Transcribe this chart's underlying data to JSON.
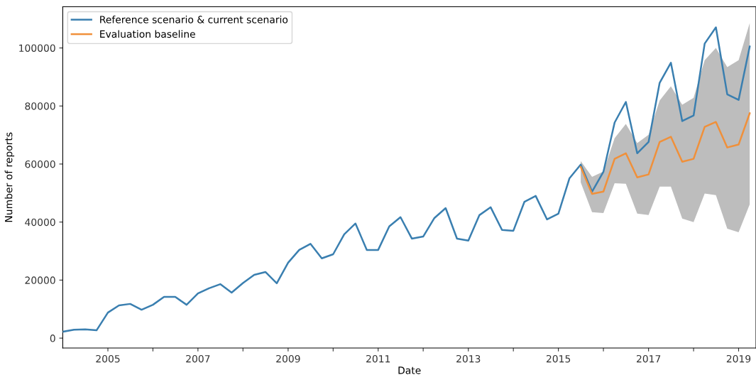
{
  "chart_data": {
    "type": "line",
    "xlabel": "Date",
    "ylabel": "Number of reports",
    "legend": "top left",
    "grid": false,
    "marker": "none",
    "line_style": "solid",
    "xlim": [
      "2004-01-01",
      "2019-05-22"
    ],
    "xticks": [
      {
        "value": "2005",
        "label": "2005"
      },
      {
        "value": "2006",
        "label": null
      },
      {
        "value": "2007",
        "label": "2007"
      },
      {
        "value": "2008",
        "label": null
      },
      {
        "value": "2009",
        "label": "2009"
      },
      {
        "value": "2010",
        "label": null
      },
      {
        "value": "2011",
        "label": "2011"
      },
      {
        "value": "2012",
        "label": null
      },
      {
        "value": "2013",
        "label": "2013"
      },
      {
        "value": "2014",
        "label": null
      },
      {
        "value": "2015",
        "label": "2015"
      },
      {
        "value": "2016",
        "label": null
      },
      {
        "value": "2017",
        "label": "2017"
      },
      {
        "value": "2018",
        "label": null
      },
      {
        "value": "2019",
        "label": "2019"
      }
    ],
    "ylim": [
      -3400,
      114200
    ],
    "yticks": [
      0,
      20000,
      40000,
      60000,
      80000,
      100000
    ],
    "series": [
      {
        "name": "Reference scenario & current scenario",
        "color": "#3a7fb0",
        "x": [
          "2004-01",
          "2004-04",
          "2004-07",
          "2004-10",
          "2005-01",
          "2005-04",
          "2005-07",
          "2005-10",
          "2006-01",
          "2006-04",
          "2006-07",
          "2006-10",
          "2007-01",
          "2007-04",
          "2007-07",
          "2007-10",
          "2008-01",
          "2008-04",
          "2008-07",
          "2008-10",
          "2009-01",
          "2009-04",
          "2009-07",
          "2009-10",
          "2010-01",
          "2010-04",
          "2010-07",
          "2010-10",
          "2011-01",
          "2011-04",
          "2011-07",
          "2011-10",
          "2012-01",
          "2012-04",
          "2012-07",
          "2012-10",
          "2013-01",
          "2013-04",
          "2013-07",
          "2013-10",
          "2014-01",
          "2014-04",
          "2014-07",
          "2014-10",
          "2015-01",
          "2015-04",
          "2015-07",
          "2015-10",
          "2016-01",
          "2016-04",
          "2016-07",
          "2016-10",
          "2017-01",
          "2017-04",
          "2017-07",
          "2017-10",
          "2018-01",
          "2018-04",
          "2018-07",
          "2018-10",
          "2019-01",
          "2019-04"
        ],
        "values": [
          2200,
          2900,
          3000,
          2700,
          8800,
          11300,
          11800,
          9800,
          11500,
          14200,
          14200,
          11500,
          15400,
          17200,
          18600,
          15700,
          19000,
          21800,
          22800,
          18900,
          26000,
          30400,
          32500,
          27500,
          28900,
          35800,
          39500,
          30400,
          30400,
          38500,
          41700,
          34300,
          35000,
          41400,
          44800,
          34300,
          33600,
          42400,
          45100,
          37300,
          37000,
          47000,
          49000,
          40900,
          42900,
          55100,
          59800,
          50500,
          57300,
          74300,
          81400,
          63700,
          67600,
          88000,
          94900,
          74800,
          76700,
          101500,
          107100,
          84000,
          82100,
          100500
        ]
      },
      {
        "name": "Evaluation baseline",
        "color": "#f0903a",
        "x": [
          "2015-07",
          "2015-10",
          "2016-01",
          "2016-04",
          "2016-07",
          "2016-10",
          "2017-01",
          "2017-04",
          "2017-07",
          "2017-10",
          "2018-01",
          "2018-04",
          "2018-07",
          "2018-10",
          "2019-01",
          "2019-04"
        ],
        "values": [
          59000,
          49700,
          50500,
          61800,
          63700,
          55400,
          56400,
          67600,
          69400,
          60800,
          61800,
          72800,
          74500,
          65700,
          66700,
          77500
        ],
        "upper": [
          61000,
          55600,
          57400,
          68900,
          73800,
          67200,
          70100,
          81900,
          86800,
          80400,
          82800,
          95800,
          100000,
          93400,
          95800,
          108600
        ],
        "lower": [
          53700,
          43400,
          43100,
          53400,
          53200,
          42900,
          42400,
          52200,
          52200,
          41200,
          40000,
          49800,
          49300,
          37700,
          36500,
          46100
        ]
      }
    ]
  }
}
